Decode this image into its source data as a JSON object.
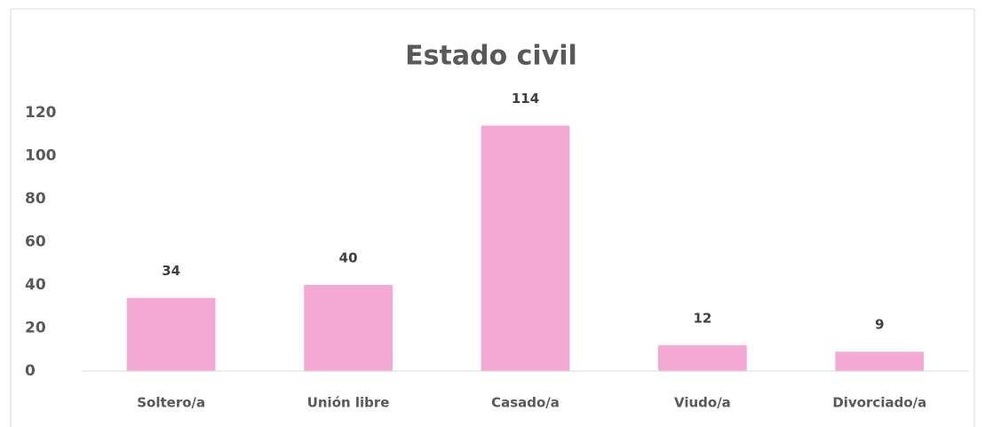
{
  "chart_data": {
    "type": "bar",
    "title": "Estado civil",
    "categories": [
      "Soltero/a",
      "Unión libre",
      "Casado/a",
      "Viudo/a",
      "Divorciado/a"
    ],
    "values": [
      34,
      40,
      114,
      12,
      9
    ],
    "color": "#f3a9d4",
    "ylim": [
      0,
      120
    ],
    "yticks": [
      0,
      20,
      40,
      60,
      80,
      100,
      120
    ],
    "grid": false
  }
}
